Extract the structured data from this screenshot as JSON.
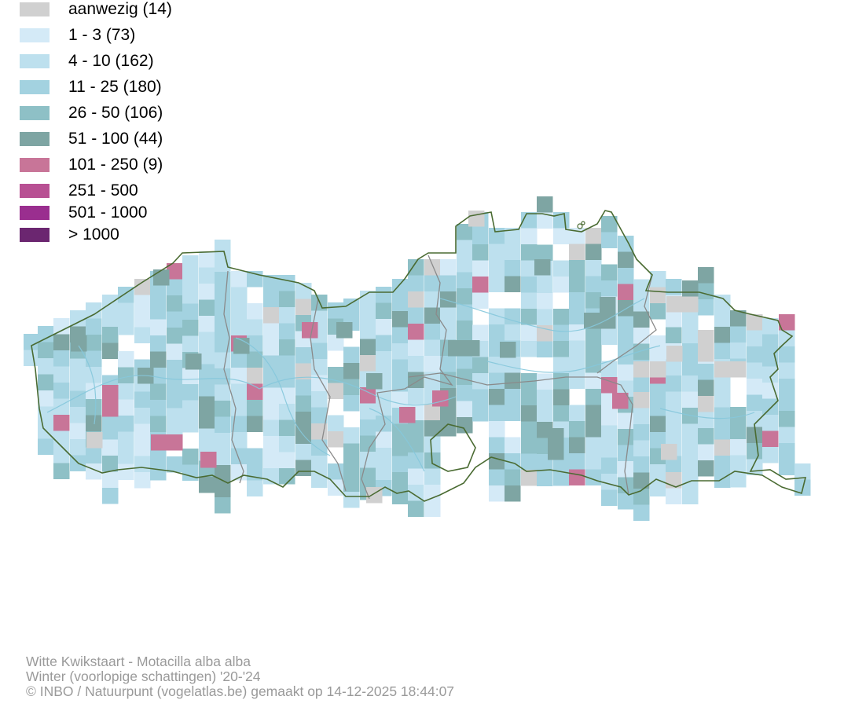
{
  "legend": [
    {
      "label": "aanwezig (14)",
      "color": "#d0d0d0"
    },
    {
      "label": "1 - 3 (73)",
      "color": "#d4eaf7"
    },
    {
      "label": "4 - 10 (162)",
      "color": "#bde0ee"
    },
    {
      "label": "11 - 25 (180)",
      "color": "#a3d2e0"
    },
    {
      "label": "26 - 50 (106)",
      "color": "#8ec0c6"
    },
    {
      "label": "51 - 100 (44)",
      "color": "#7ea5a3"
    },
    {
      "label": "101 - 250 (9)",
      "color": "#c87598"
    },
    {
      "label": "251 - 500",
      "color": "#b85093"
    },
    {
      "label": "501 - 1000",
      "color": "#9a2e8f"
    },
    {
      "label": "> 1000",
      "color": "#6b2670"
    }
  ],
  "footer": {
    "species": "Witte Kwikstaart - Motacilla alba alba",
    "period": "Winter (voorlopige schattingen) '20-'24",
    "credit": "© INBO / Natuurpunt (vogelatlas.be) gemaakt op 14-12-2025 18:44:07"
  },
  "colors": {
    "border": "#4a6b32",
    "province_border": "#8a8a8a",
    "river": "#86c8dc"
  }
}
